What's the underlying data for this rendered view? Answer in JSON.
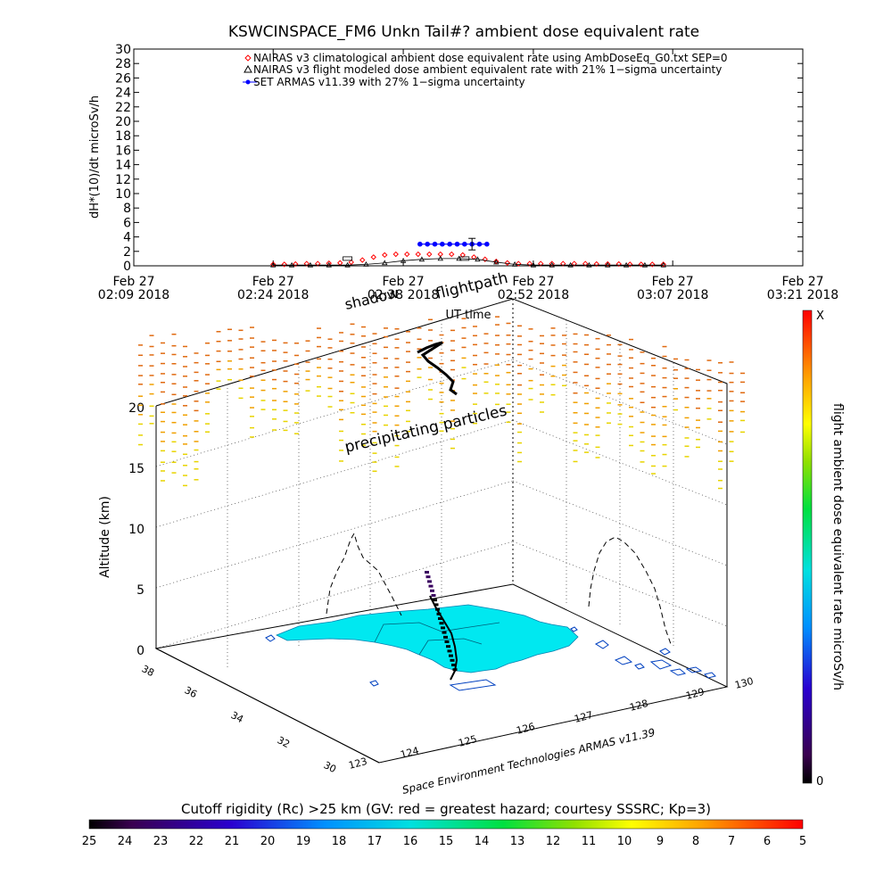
{
  "chart_data": [
    {
      "type": "line",
      "title": "KSWCINSPACE_FM6 Unkn Tail#? ambient dose equivalent rate",
      "ylabel": "dH*(10)/dt microSv/h",
      "xlabel": "UT time",
      "ylim": [
        0,
        30
      ],
      "yticks": [
        0,
        2,
        4,
        6,
        8,
        10,
        12,
        14,
        16,
        18,
        20,
        22,
        24,
        26,
        28,
        30
      ],
      "xtick_labels": [
        [
          "Feb 27",
          "02:09 2018"
        ],
        [
          "Feb 27",
          "02:24 2018"
        ],
        [
          "Feb 27",
          "02:38 2018"
        ],
        [
          "Feb 27",
          "02:52 2018"
        ],
        [
          "Feb 27",
          "03:07 2018"
        ],
        [
          "Feb 27",
          "03:21 2018"
        ]
      ],
      "xtick_minutes": [
        129,
        144,
        158,
        172,
        187,
        201
      ],
      "xlim_minutes": [
        129,
        201
      ],
      "legend": [
        "NAIRAS v3 climatological ambient dose equivalent rate using AmbDoseEq_G0.txt SEP=0",
        "NAIRAS v3 flight modeled dose ambient equivalent rate with 21% 1−sigma uncertainty",
        "SET ARMAS v11.39 with 27% 1−sigma uncertainty"
      ],
      "series": [
        {
          "name": "NAIRAS v3 climatological ambient dose equivalent rate using AmbDoseEq_G0.txt SEP=0",
          "color": "#ff0000",
          "x_minutes": [
            144,
            145.2,
            146.4,
            147.6,
            148.8,
            150,
            151.2,
            152.4,
            153.6,
            154.8,
            156,
            157.2,
            158.4,
            159.6,
            160.8,
            162,
            163.2,
            164.4,
            165.6,
            166.8,
            168,
            169.2,
            170.4,
            171.6,
            172.8,
            174,
            175.2,
            176.4,
            177.6,
            178.8,
            180,
            181.2,
            182.4,
            183.6,
            184.8,
            186
          ],
          "values": [
            0.2,
            0.2,
            0.25,
            0.3,
            0.3,
            0.35,
            0.4,
            0.5,
            0.8,
            1.2,
            1.5,
            1.6,
            1.6,
            1.6,
            1.6,
            1.6,
            1.6,
            1.5,
            1.2,
            0.9,
            0.6,
            0.4,
            0.3,
            0.3,
            0.3,
            0.3,
            0.3,
            0.3,
            0.3,
            0.25,
            0.25,
            0.25,
            0.2,
            0.2,
            0.2,
            0.2
          ]
        },
        {
          "name": "NAIRAS v3 flight modeled dose ambient equivalent rate with 21% 1−sigma uncertainty",
          "color": "#000000",
          "x_minutes": [
            144,
            146,
            148,
            150,
            152,
            154,
            156,
            158,
            160,
            162,
            164,
            166,
            168,
            170,
            172,
            174,
            176,
            178,
            180,
            182,
            184,
            186
          ],
          "values": [
            0.1,
            0.1,
            0.1,
            0.1,
            0.1,
            0.2,
            0.4,
            0.7,
            0.9,
            1.0,
            1.0,
            0.9,
            0.5,
            0.2,
            0.1,
            0.1,
            0.1,
            0.1,
            0.1,
            0.1,
            0.1,
            0.1
          ]
        },
        {
          "name": "SET ARMAS v11.39 with 27% 1−sigma uncertainty",
          "color": "#0000ff",
          "x_minutes": [
            159.8,
            160.6,
            161.4,
            162.2,
            163.0,
            163.8,
            164.6,
            165.4,
            166.2,
            167.0
          ],
          "values": [
            3,
            3,
            3,
            3,
            3,
            3,
            3,
            3,
            3,
            3
          ]
        }
      ]
    },
    {
      "type": "scatter",
      "ylabel": "Altitude (km)",
      "zticks": [
        0,
        5,
        10,
        15,
        20
      ],
      "lat_ticks": [
        30,
        32,
        34,
        36,
        38
      ],
      "lon_ticks": [
        123,
        124,
        125,
        126,
        127,
        128,
        129,
        130
      ],
      "colorbar_label": "flight ambient dose equivalent rate microSv/h",
      "colorbar_range": [
        "0",
        "X"
      ],
      "annotations": {
        "shadow": "shadow",
        "flightpath": "flightpath",
        "precipitating": "precipitating particles",
        "credit": "Space Environment Technologies ARMAS v11.39"
      }
    },
    {
      "type": "heatmap",
      "title": "Cutoff rigidity (Rc) >25 km (GV: red = greatest hazard; courtesy SSSRC; Kp=3)",
      "scale": [
        25,
        24,
        23,
        22,
        21,
        20,
        19,
        18,
        17,
        16,
        15,
        14,
        13,
        12,
        11,
        10,
        9,
        8,
        7,
        6,
        5
      ]
    }
  ]
}
